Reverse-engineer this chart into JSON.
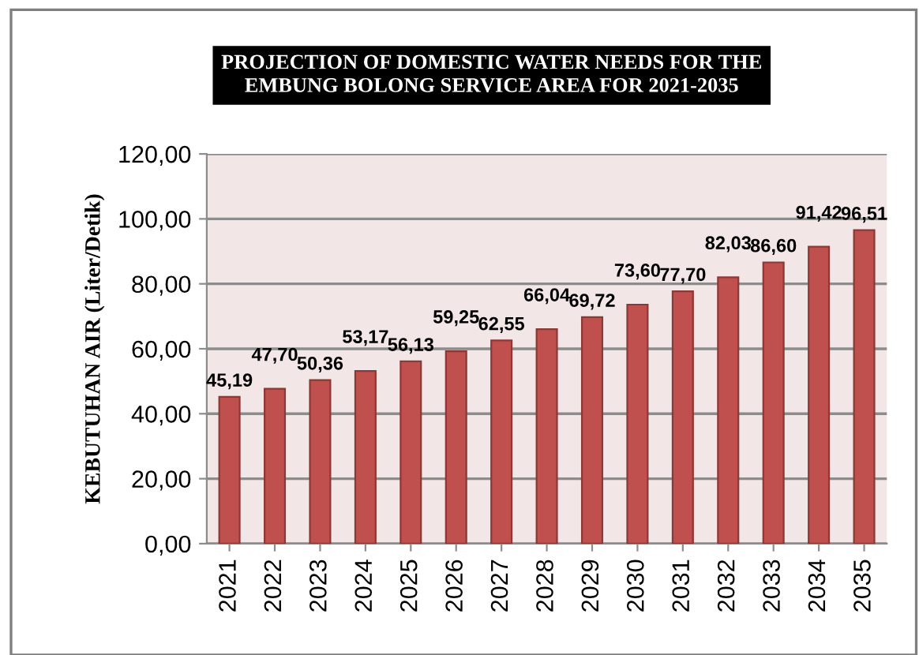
{
  "chart_data": {
    "type": "bar",
    "title": "PROJECTION OF DOMESTIC WATER NEEDS FOR THE\nEMBUNG BOLONG SERVICE AREA FOR 2021-2035",
    "ylabel": "KEBUTUHAN AIR (Liter/Detik)",
    "categories": [
      "2021",
      "2022",
      "2023",
      "2024",
      "2025",
      "2026",
      "2027",
      "2028",
      "2029",
      "2030",
      "2031",
      "2032",
      "2033",
      "2034",
      "2035"
    ],
    "values": [
      45.19,
      47.7,
      50.36,
      53.17,
      56.13,
      59.25,
      62.55,
      66.04,
      69.72,
      73.6,
      77.7,
      82.03,
      86.6,
      91.42,
      96.51
    ],
    "value_labels": [
      "45,19",
      "47,70",
      "50,36",
      "53,17",
      "56,13",
      "59,25",
      "62,55",
      "66,04",
      "69,72",
      "73,60",
      "77,70",
      "82,03",
      "86,60",
      "91,42",
      "96,51"
    ],
    "color": "#c0504d",
    "ylim": [
      0,
      120
    ],
    "yticks": [
      {
        "value": 0,
        "label": "0,00"
      },
      {
        "value": 20,
        "label": "20,00"
      },
      {
        "value": 40,
        "label": "40,00"
      },
      {
        "value": 60,
        "label": "60,00"
      },
      {
        "value": 80,
        "label": "80,00"
      },
      {
        "value": 100,
        "label": "100,00"
      },
      {
        "value": 120,
        "label": "120,00"
      }
    ],
    "grid": "y"
  }
}
